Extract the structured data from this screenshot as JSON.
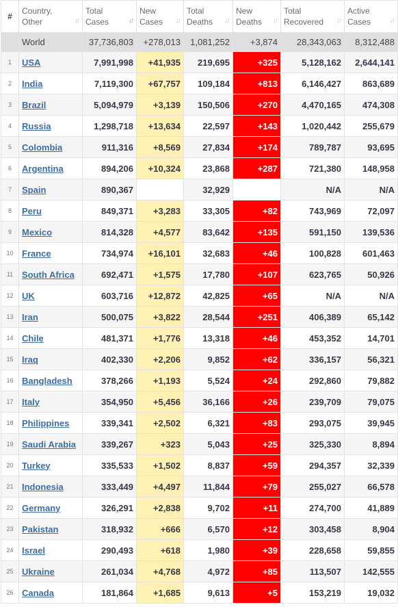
{
  "headers": [
    {
      "key": "rank",
      "label": "#",
      "sort": false
    },
    {
      "key": "country",
      "label1": "Country,",
      "label2": "Other",
      "sort": true,
      "active": false
    },
    {
      "key": "total_cases",
      "label1": "Total",
      "label2": "Cases",
      "sort": true,
      "active": true
    },
    {
      "key": "new_cases",
      "label1": "New",
      "label2": "Cases",
      "sort": true,
      "active": false
    },
    {
      "key": "total_deaths",
      "label1": "Total",
      "label2": "Deaths",
      "sort": true,
      "active": false
    },
    {
      "key": "new_deaths",
      "label1": "New",
      "label2": "Deaths",
      "sort": true,
      "active": false
    },
    {
      "key": "total_recovered",
      "label1": "Total",
      "label2": "Recovered",
      "sort": true,
      "active": false
    },
    {
      "key": "active_cases",
      "label1": "Active",
      "label2": "Cases",
      "sort": true,
      "active": false
    }
  ],
  "world": {
    "country": "World",
    "total_cases": "37,736,803",
    "new_cases": "+278,013",
    "total_deaths": "1,081,252",
    "new_deaths": "+3,874",
    "total_recovered": "28,343,063",
    "active_cases": "8,312,488"
  },
  "rows": [
    {
      "rank": "1",
      "country": "USA",
      "total_cases": "7,991,998",
      "new_cases": "+41,935",
      "total_deaths": "219,695",
      "new_deaths": "+325",
      "total_recovered": "5,128,162",
      "active_cases": "2,644,141"
    },
    {
      "rank": "2",
      "country": "India",
      "total_cases": "7,119,300",
      "new_cases": "+67,757",
      "total_deaths": "109,184",
      "new_deaths": "+813",
      "total_recovered": "6,146,427",
      "active_cases": "863,689"
    },
    {
      "rank": "3",
      "country": "Brazil",
      "total_cases": "5,094,979",
      "new_cases": "+3,139",
      "total_deaths": "150,506",
      "new_deaths": "+270",
      "total_recovered": "4,470,165",
      "active_cases": "474,308"
    },
    {
      "rank": "4",
      "country": "Russia",
      "total_cases": "1,298,718",
      "new_cases": "+13,634",
      "total_deaths": "22,597",
      "new_deaths": "+143",
      "total_recovered": "1,020,442",
      "active_cases": "255,679"
    },
    {
      "rank": "5",
      "country": "Colombia",
      "total_cases": "911,316",
      "new_cases": "+8,569",
      "total_deaths": "27,834",
      "new_deaths": "+174",
      "total_recovered": "789,787",
      "active_cases": "93,695"
    },
    {
      "rank": "6",
      "country": "Argentina",
      "total_cases": "894,206",
      "new_cases": "+10,324",
      "total_deaths": "23,868",
      "new_deaths": "+287",
      "total_recovered": "721,380",
      "active_cases": "148,958"
    },
    {
      "rank": "7",
      "country": "Spain",
      "total_cases": "890,367",
      "new_cases": "",
      "total_deaths": "32,929",
      "new_deaths": "",
      "total_recovered": "N/A",
      "active_cases": "N/A"
    },
    {
      "rank": "8",
      "country": "Peru",
      "total_cases": "849,371",
      "new_cases": "+3,283",
      "total_deaths": "33,305",
      "new_deaths": "+82",
      "total_recovered": "743,969",
      "active_cases": "72,097"
    },
    {
      "rank": "9",
      "country": "Mexico",
      "total_cases": "814,328",
      "new_cases": "+4,577",
      "total_deaths": "83,642",
      "new_deaths": "+135",
      "total_recovered": "591,150",
      "active_cases": "139,536"
    },
    {
      "rank": "10",
      "country": "France",
      "total_cases": "734,974",
      "new_cases": "+16,101",
      "total_deaths": "32,683",
      "new_deaths": "+46",
      "total_recovered": "100,828",
      "active_cases": "601,463"
    },
    {
      "rank": "11",
      "country": "South Africa",
      "total_cases": "692,471",
      "new_cases": "+1,575",
      "total_deaths": "17,780",
      "new_deaths": "+107",
      "total_recovered": "623,765",
      "active_cases": "50,926"
    },
    {
      "rank": "12",
      "country": "UK",
      "total_cases": "603,716",
      "new_cases": "+12,872",
      "total_deaths": "42,825",
      "new_deaths": "+65",
      "total_recovered": "N/A",
      "active_cases": "N/A"
    },
    {
      "rank": "13",
      "country": "Iran",
      "total_cases": "500,075",
      "new_cases": "+3,822",
      "total_deaths": "28,544",
      "new_deaths": "+251",
      "total_recovered": "406,389",
      "active_cases": "65,142"
    },
    {
      "rank": "14",
      "country": "Chile",
      "total_cases": "481,371",
      "new_cases": "+1,776",
      "total_deaths": "13,318",
      "new_deaths": "+46",
      "total_recovered": "453,352",
      "active_cases": "14,701"
    },
    {
      "rank": "15",
      "country": "Iraq",
      "total_cases": "402,330",
      "new_cases": "+2,206",
      "total_deaths": "9,852",
      "new_deaths": "+62",
      "total_recovered": "336,157",
      "active_cases": "56,321"
    },
    {
      "rank": "16",
      "country": "Bangladesh",
      "total_cases": "378,266",
      "new_cases": "+1,193",
      "total_deaths": "5,524",
      "new_deaths": "+24",
      "total_recovered": "292,860",
      "active_cases": "79,882"
    },
    {
      "rank": "17",
      "country": "Italy",
      "total_cases": "354,950",
      "new_cases": "+5,456",
      "total_deaths": "36,166",
      "new_deaths": "+26",
      "total_recovered": "239,709",
      "active_cases": "79,075"
    },
    {
      "rank": "18",
      "country": "Philippines",
      "total_cases": "339,341",
      "new_cases": "+2,502",
      "total_deaths": "6,321",
      "new_deaths": "+83",
      "total_recovered": "293,075",
      "active_cases": "39,945"
    },
    {
      "rank": "19",
      "country": "Saudi Arabia",
      "total_cases": "339,267",
      "new_cases": "+323",
      "total_deaths": "5,043",
      "new_deaths": "+25",
      "total_recovered": "325,330",
      "active_cases": "8,894"
    },
    {
      "rank": "20",
      "country": "Turkey",
      "total_cases": "335,533",
      "new_cases": "+1,502",
      "total_deaths": "8,837",
      "new_deaths": "+59",
      "total_recovered": "294,357",
      "active_cases": "32,339"
    },
    {
      "rank": "21",
      "country": "Indonesia",
      "total_cases": "333,449",
      "new_cases": "+4,497",
      "total_deaths": "11,844",
      "new_deaths": "+79",
      "total_recovered": "255,027",
      "active_cases": "66,578"
    },
    {
      "rank": "22",
      "country": "Germany",
      "total_cases": "326,291",
      "new_cases": "+2,838",
      "total_deaths": "9,702",
      "new_deaths": "+11",
      "total_recovered": "274,700",
      "active_cases": "41,889"
    },
    {
      "rank": "23",
      "country": "Pakistan",
      "total_cases": "318,932",
      "new_cases": "+666",
      "total_deaths": "6,570",
      "new_deaths": "+12",
      "total_recovered": "303,458",
      "active_cases": "8,904"
    },
    {
      "rank": "24",
      "country": "Israel",
      "total_cases": "290,493",
      "new_cases": "+618",
      "total_deaths": "1,980",
      "new_deaths": "+39",
      "total_recovered": "228,658",
      "active_cases": "59,855"
    },
    {
      "rank": "25",
      "country": "Ukraine",
      "total_cases": "261,034",
      "new_cases": "+4,768",
      "total_deaths": "4,972",
      "new_deaths": "+85",
      "total_recovered": "113,507",
      "active_cases": "142,555"
    },
    {
      "rank": "26",
      "country": "Canada",
      "total_cases": "181,864",
      "new_cases": "+1,685",
      "total_deaths": "9,613",
      "new_deaths": "+5",
      "total_recovered": "153,219",
      "active_cases": "19,032"
    }
  ],
  "colors": {
    "new_cases_bg": "#fff0b3",
    "new_deaths_bg": "#ff0000",
    "world_row_bg": "#dfdfe1",
    "link": "#3e6ea1"
  },
  "icons": {
    "sort": "sort-arrows-icon"
  }
}
